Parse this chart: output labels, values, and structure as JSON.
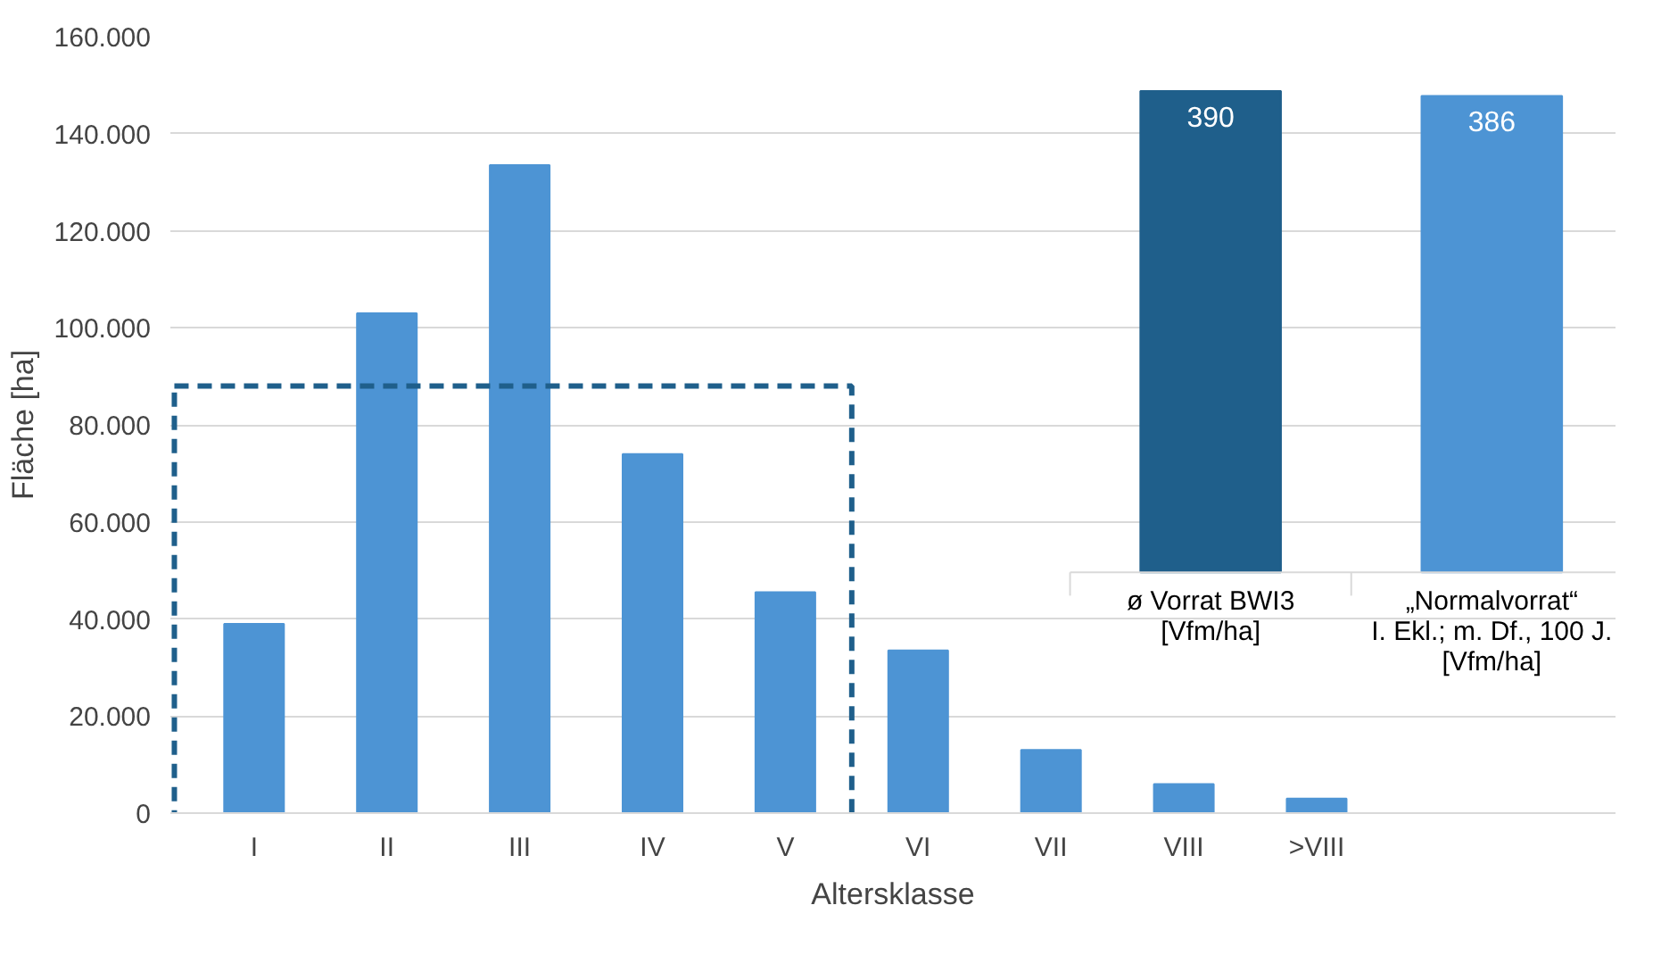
{
  "chart_data": [
    {
      "type": "bar",
      "xlabel": "Altersklasse",
      "ylabel": "Fläche [ha]",
      "categories": [
        "I",
        "II",
        "III",
        "IV",
        "V",
        "VI",
        "VII",
        "VIII",
        ">VIII"
      ],
      "values": [
        39000,
        103000,
        133500,
        74000,
        45500,
        33500,
        13000,
        6000,
        3000
      ],
      "color": "#4d94d4",
      "ylim": [
        0,
        160000
      ],
      "yticks": [
        {
          "value": 0,
          "label": "0"
        },
        {
          "value": 20000,
          "label": "20.000"
        },
        {
          "value": 40000,
          "label": "40.000"
        },
        {
          "value": 60000,
          "label": "60.000"
        },
        {
          "value": 80000,
          "label": "80.000"
        },
        {
          "value": 100000,
          "label": "100.000"
        },
        {
          "value": 120000,
          "label": "120.000"
        },
        {
          "value": 140000,
          "label": "140.000"
        },
        {
          "value": 160000,
          "label": "160.000"
        }
      ],
      "grid": "y"
    },
    {
      "type": "bar",
      "categories": [
        "ø Vorrat BWI3\n[Vfm/ha]",
        "„Normalvorrat“\nI. Ekl.; m. Df., 100 J.\n[Vfm/ha]"
      ],
      "values": [
        390,
        386
      ],
      "colors": [
        "#1f5f8b",
        "#4d94d4"
      ],
      "data_labels": true
    }
  ]
}
